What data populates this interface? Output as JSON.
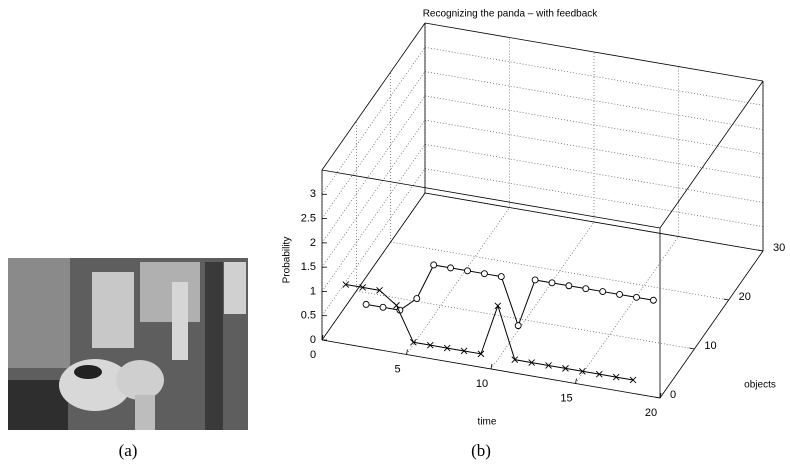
{
  "captions": [
    "(a)",
    "(b)"
  ],
  "chart_data": {
    "type": "line3d",
    "title": "Recognizing the panda – with feedback",
    "xlabel": "time",
    "ylabel": "objects",
    "zlabel": "Probability",
    "xlim": [
      0,
      20
    ],
    "xticks": [
      0,
      5,
      10,
      15,
      20
    ],
    "ylim": [
      0,
      30
    ],
    "yticks": [
      0,
      10,
      20,
      30
    ],
    "zlim": [
      0,
      3.5
    ],
    "zticks": [
      0,
      0.5,
      1,
      1.5,
      2,
      2.5,
      3
    ],
    "grid": true,
    "series": [
      {
        "marker": "o",
        "color": "#000000",
        "y": 3,
        "x": [
          2,
          3,
          4,
          5,
          6,
          7,
          8,
          9,
          10,
          11,
          12,
          13,
          14,
          15,
          16,
          17,
          18,
          19
        ],
        "values": [
          0.55,
          0.55,
          0.55,
          0.85,
          1.6,
          1.6,
          1.6,
          1.6,
          1.6,
          0.65,
          1.65,
          1.65,
          1.65,
          1.65,
          1.65,
          1.65,
          1.65,
          1.65
        ]
      },
      {
        "marker": "x",
        "color": "#000000",
        "y": 2,
        "x": [
          1,
          2,
          3,
          4,
          5,
          6,
          7,
          8,
          9,
          10,
          11,
          12,
          13,
          14,
          15,
          16,
          17,
          18
        ],
        "values": [
          1.0,
          1.0,
          1.0,
          0.75,
          0.05,
          0.05,
          0.05,
          0.05,
          0.05,
          1.1,
          0.05,
          0.05,
          0.05,
          0.05,
          0.05,
          0.05,
          0.05,
          0.05
        ]
      }
    ]
  }
}
